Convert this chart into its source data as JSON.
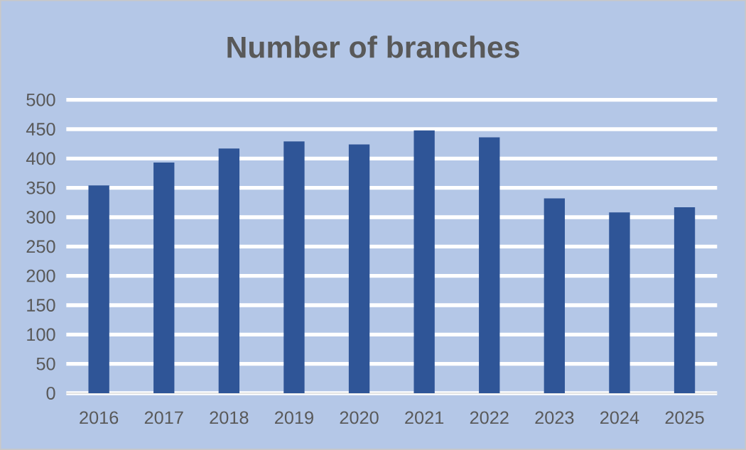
{
  "chart_data": {
    "type": "bar",
    "title": "Number of branches",
    "categories": [
      "2016",
      "2017",
      "2018",
      "2019",
      "2020",
      "2021",
      "2022",
      "2023",
      "2024",
      "2025"
    ],
    "values": [
      354,
      393,
      417,
      429,
      424,
      448,
      436,
      332,
      308,
      317
    ],
    "color": "#2f5597",
    "ylim": [
      0,
      500
    ],
    "yticks": [
      0,
      50,
      100,
      150,
      200,
      250,
      300,
      350,
      400,
      450,
      500
    ],
    "grid": "y"
  }
}
